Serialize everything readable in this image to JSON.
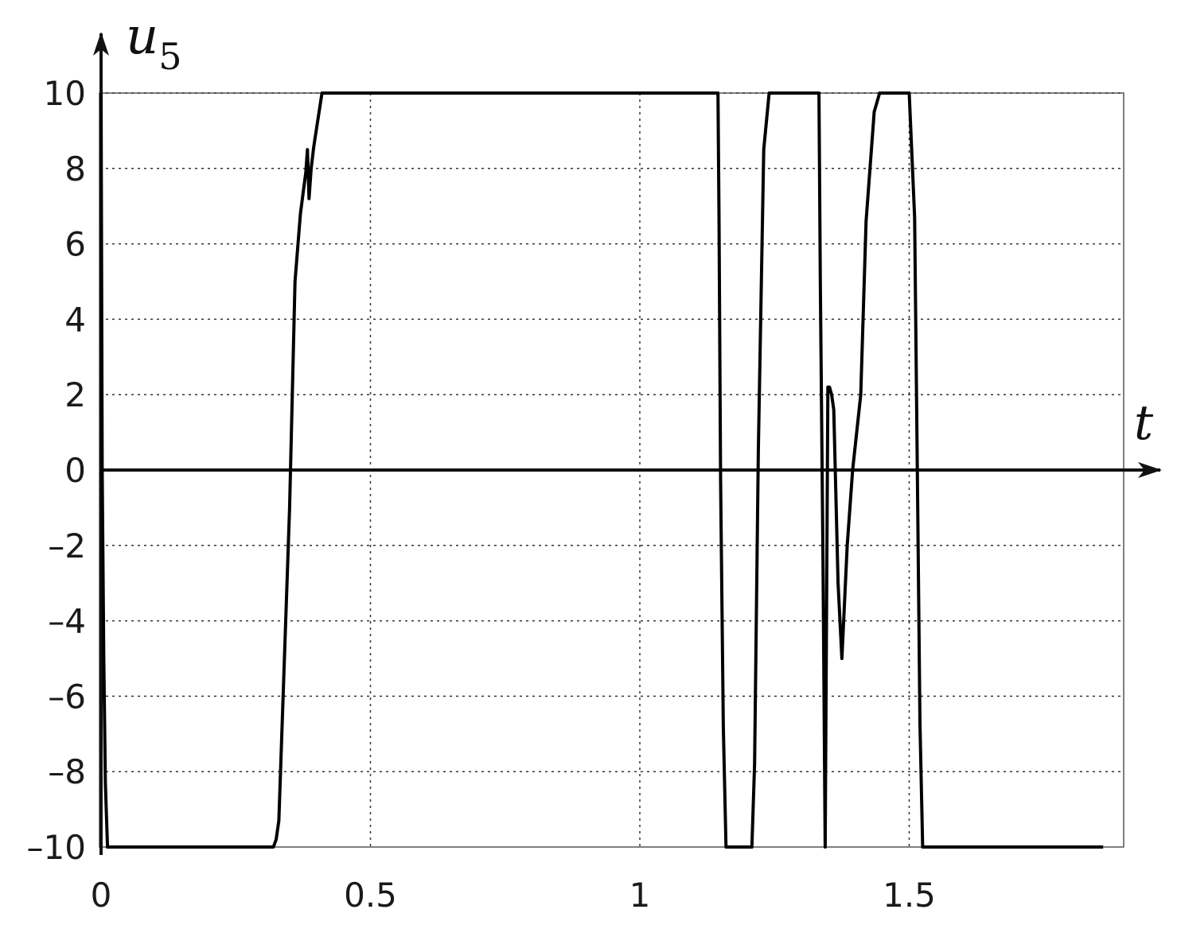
{
  "chart_data": {
    "type": "line",
    "title": "",
    "xlabel": "t",
    "ylabel": "u",
    "ylabel_subscript": "5",
    "xlim": [
      0,
      1.9
    ],
    "ylim": [
      -10,
      10
    ],
    "grid": true,
    "grid_style": "dotted",
    "line_color": "#000000",
    "x_ticks": [
      {
        "value": 0,
        "label": "0"
      },
      {
        "value": 0.5,
        "label": "0.5"
      },
      {
        "value": 1,
        "label": "1"
      },
      {
        "value": 1.5,
        "label": "1.5"
      }
    ],
    "y_ticks": [
      {
        "value": 10,
        "label": "10"
      },
      {
        "value": 8,
        "label": "8"
      },
      {
        "value": 6,
        "label": "6"
      },
      {
        "value": 4,
        "label": "4"
      },
      {
        "value": 2,
        "label": "2"
      },
      {
        "value": 0,
        "label": "0"
      },
      {
        "value": -2,
        "label": "–2"
      },
      {
        "value": -4,
        "label": "–4"
      },
      {
        "value": -6,
        "label": "–6"
      },
      {
        "value": -8,
        "label": "–8"
      },
      {
        "value": -10,
        "label": "–10"
      }
    ],
    "series": [
      {
        "x": [
          0,
          0.002,
          0.005,
          0.008,
          0.012,
          0.32,
          0.325,
          0.33,
          0.35,
          0.36,
          0.37,
          0.38,
          0.383,
          0.386,
          0.39,
          0.395,
          0.41,
          0.42,
          1.145,
          1.147,
          1.15,
          1.155,
          1.16,
          1.208,
          1.213,
          1.22,
          1.23,
          1.24,
          1.3325,
          1.335,
          1.34,
          1.344,
          1.349,
          1.352,
          1.356,
          1.36,
          1.368,
          1.375,
          1.385,
          1.395,
          1.41,
          1.42,
          1.435,
          1.445,
          1.5,
          1.51,
          1.515,
          1.52,
          1.525,
          1.86
        ],
        "y": [
          10,
          0,
          -5,
          -8.3,
          -10,
          -10,
          -9.8,
          -9.3,
          -1,
          5,
          6.8,
          7.9,
          8.5,
          7.2,
          8,
          8.6,
          10,
          10,
          10,
          6.7,
          -0.3,
          -6.8,
          -10,
          -10,
          -7.8,
          0.5,
          8.5,
          10,
          10,
          5,
          -2.5,
          -10,
          2.2,
          2.2,
          2,
          1.6,
          -3,
          -5,
          -2,
          0,
          2,
          6.6,
          9.5,
          10,
          10,
          6.7,
          0,
          -6.7,
          -10,
          -10
        ]
      }
    ]
  }
}
